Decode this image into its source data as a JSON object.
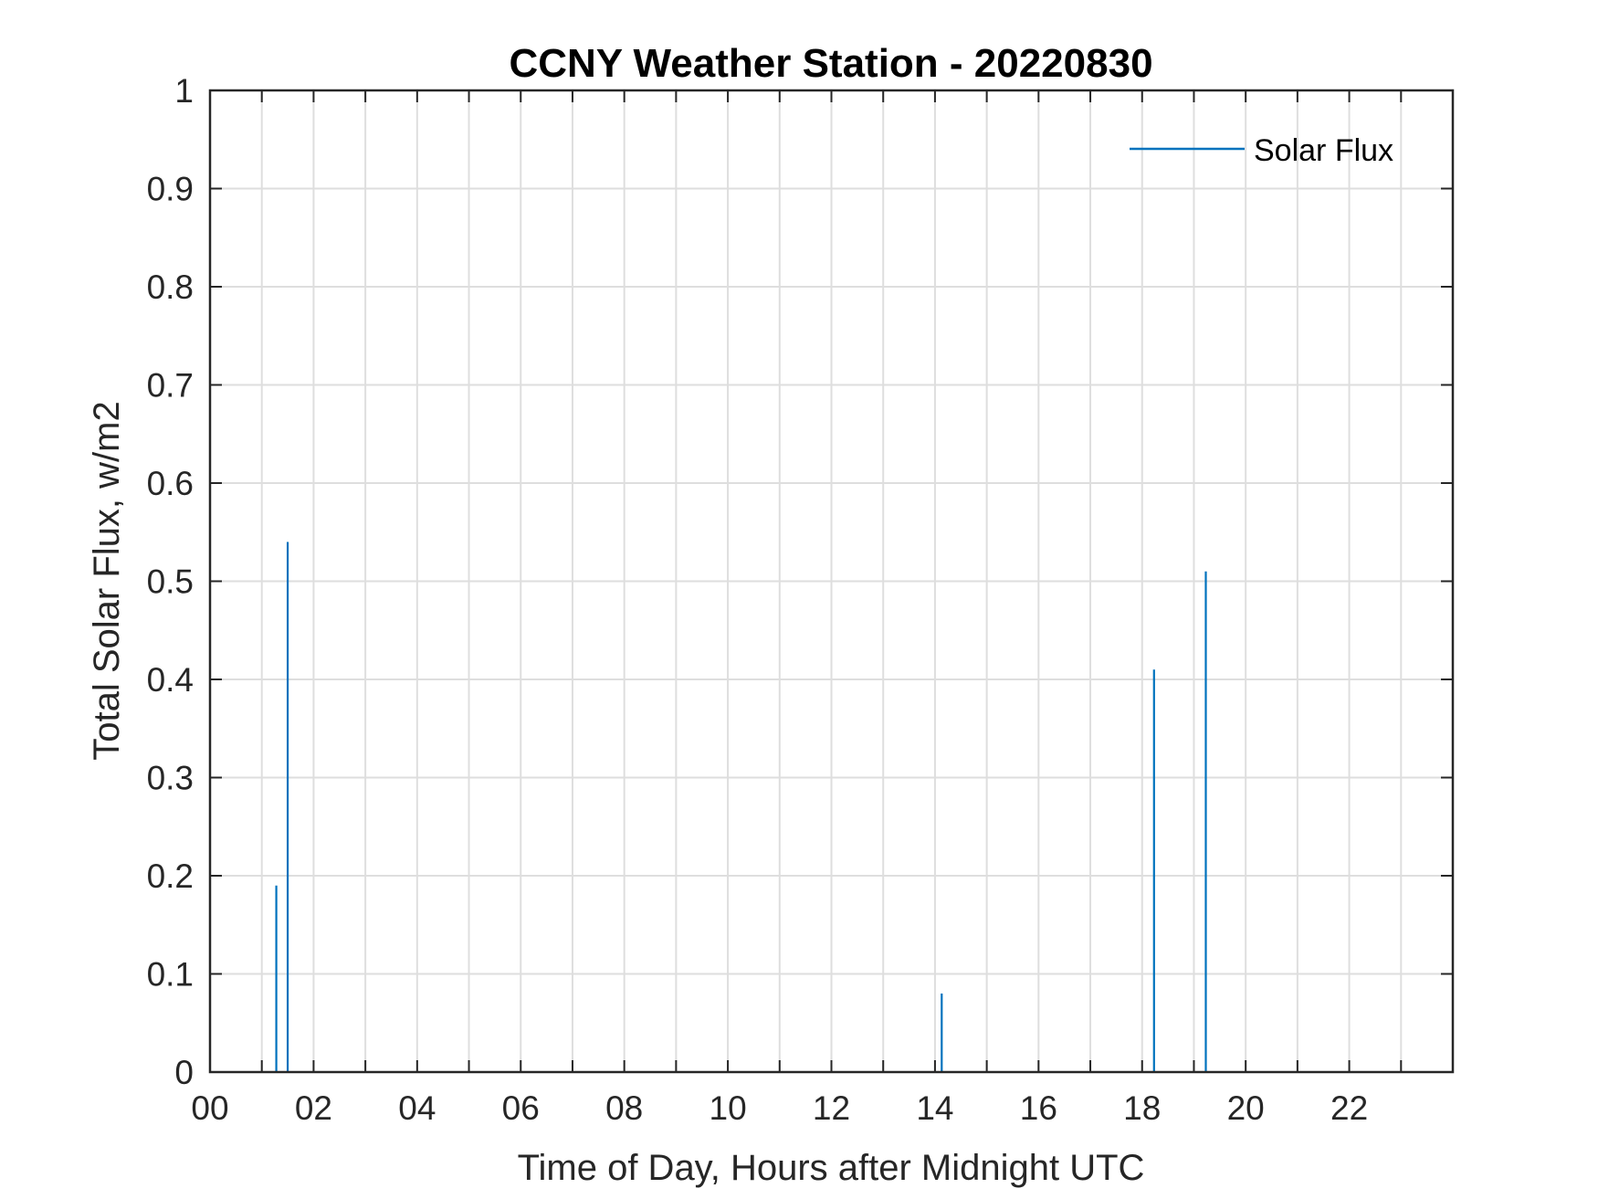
{
  "chart_data": {
    "type": "line",
    "title": "CCNY Weather Station - 20220830",
    "xlabel": "Time of Day, Hours after Midnight UTC",
    "ylabel": "Total Solar Flux, w/m2",
    "xlim": [
      0,
      24
    ],
    "ylim": [
      0,
      1
    ],
    "x_ticks": [
      0,
      2,
      4,
      6,
      8,
      10,
      12,
      14,
      16,
      18,
      20,
      22
    ],
    "x_tick_labels": [
      "00",
      "02",
      "04",
      "06",
      "08",
      "10",
      "12",
      "14",
      "16",
      "18",
      "20",
      "22"
    ],
    "y_ticks": [
      0,
      0.1,
      0.2,
      0.3,
      0.4,
      0.5,
      0.6,
      0.7,
      0.8,
      0.9,
      1
    ],
    "y_tick_labels": [
      "0",
      "0.1",
      "0.2",
      "0.3",
      "0.4",
      "0.5",
      "0.6",
      "0.7",
      "0.8",
      "0.9",
      "1"
    ],
    "grid": true,
    "legend_position": "top-right",
    "series": [
      {
        "name": "Solar Flux",
        "color": "#0072BD",
        "points": [
          {
            "x": 1.28,
            "y": 0.19
          },
          {
            "x": 1.5,
            "y": 0.54
          },
          {
            "x": 14.13,
            "y": 0.08
          },
          {
            "x": 18.23,
            "y": 0.41
          },
          {
            "x": 19.23,
            "y": 0.51
          }
        ]
      }
    ]
  }
}
